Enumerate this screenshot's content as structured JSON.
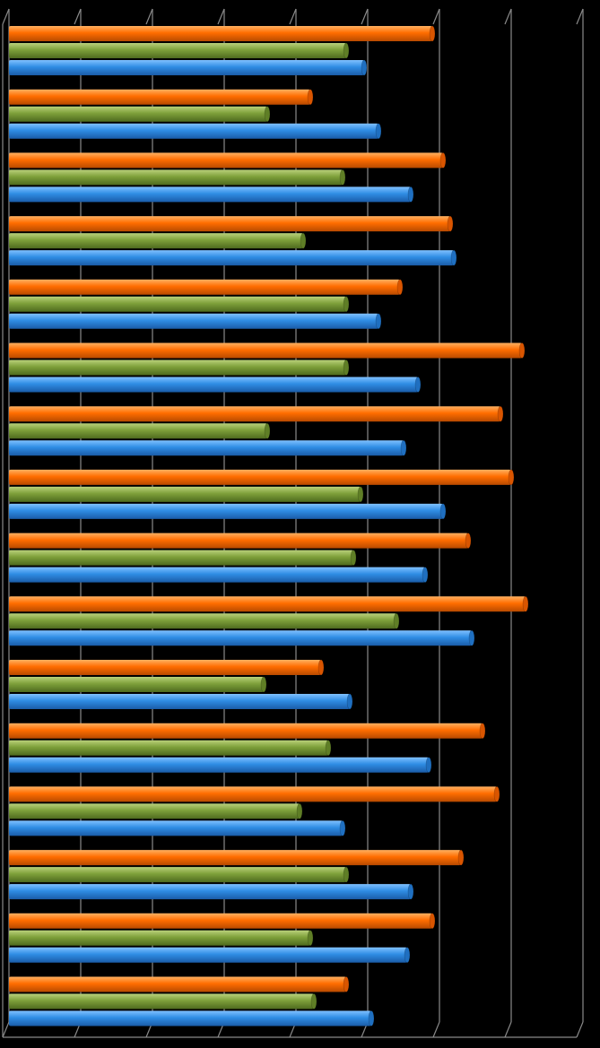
{
  "chart_data": {
    "type": "bar",
    "orientation": "horizontal",
    "style": "3d-cylinder",
    "title": "",
    "xlabel": "",
    "ylabel": "",
    "grid": true,
    "legend": "none",
    "xlim": [
      0,
      8
    ],
    "categories": [
      "",
      "",
      "",
      "",
      "",
      "",
      "",
      "",
      "",
      "",
      "",
      "",
      "",
      "",
      "",
      ""
    ],
    "series": [
      {
        "color": "#ff6d00",
        "values": [
          5.9,
          4.2,
          6.05,
          6.15,
          5.45,
          7.15,
          6.85,
          7.0,
          6.4,
          7.2,
          4.35,
          6.6,
          6.8,
          6.3,
          5.9,
          4.7
        ]
      },
      {
        "color": "#7ea03a",
        "values": [
          4.7,
          3.6,
          4.65,
          4.1,
          4.7,
          4.7,
          3.6,
          4.9,
          4.8,
          5.4,
          3.55,
          4.45,
          4.05,
          4.7,
          4.2,
          4.25
        ]
      },
      {
        "color": "#2f8de4",
        "values": [
          4.95,
          5.15,
          5.6,
          6.2,
          5.15,
          5.7,
          5.5,
          6.05,
          5.8,
          6.45,
          4.75,
          5.85,
          4.65,
          5.6,
          5.55,
          5.05
        ]
      }
    ]
  }
}
